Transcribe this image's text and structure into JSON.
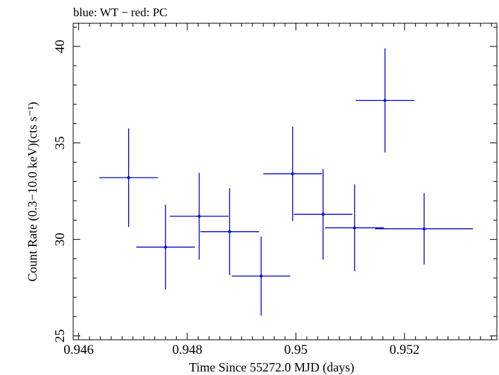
{
  "chart_data": {
    "type": "scatter",
    "title": "blue: WT − red: PC",
    "xlabel": "Time Since 55272.0 MJD (days)",
    "ylabel": "Count Rate (0.3−10.0 keV)(cts s⁻¹)",
    "xlim": [
      0.9459,
      0.9537
    ],
    "ylim": [
      24.8,
      41.2
    ],
    "x_ticks": [
      0.946,
      0.948,
      0.95,
      0.952
    ],
    "x_tick_labels": [
      "0.946",
      "0.948",
      "0.95",
      "0.952"
    ],
    "y_ticks": [
      25,
      30,
      35,
      40
    ],
    "y_tick_labels": [
      "25",
      "30",
      "35",
      "40"
    ],
    "grid": false,
    "series_color": "#0000cc",
    "series": [
      {
        "points": [
          {
            "x": 0.94692,
            "y": 33.2,
            "xerr": 0.00054,
            "yerr": 2.55
          },
          {
            "x": 0.9476,
            "y": 29.6,
            "xerr": 0.00054,
            "yerr": 2.2
          },
          {
            "x": 0.94822,
            "y": 31.2,
            "xerr": 0.00054,
            "yerr": 2.25
          },
          {
            "x": 0.94878,
            "y": 30.4,
            "xerr": 0.00054,
            "yerr": 2.25
          },
          {
            "x": 0.94936,
            "y": 28.1,
            "xerr": 0.00054,
            "yerr": 2.05
          },
          {
            "x": 0.94994,
            "y": 33.4,
            "xerr": 0.00054,
            "yerr": 2.45
          },
          {
            "x": 0.9505,
            "y": 31.3,
            "xerr": 0.00054,
            "yerr": 2.35
          },
          {
            "x": 0.95108,
            "y": 30.6,
            "xerr": 0.00054,
            "yerr": 2.25
          },
          {
            "x": 0.95164,
            "y": 37.2,
            "xerr": 0.00054,
            "yerr": 2.7
          },
          {
            "x": 0.95236,
            "y": 30.55,
            "xerr": 0.0009,
            "yerr": 1.85
          }
        ]
      }
    ]
  }
}
